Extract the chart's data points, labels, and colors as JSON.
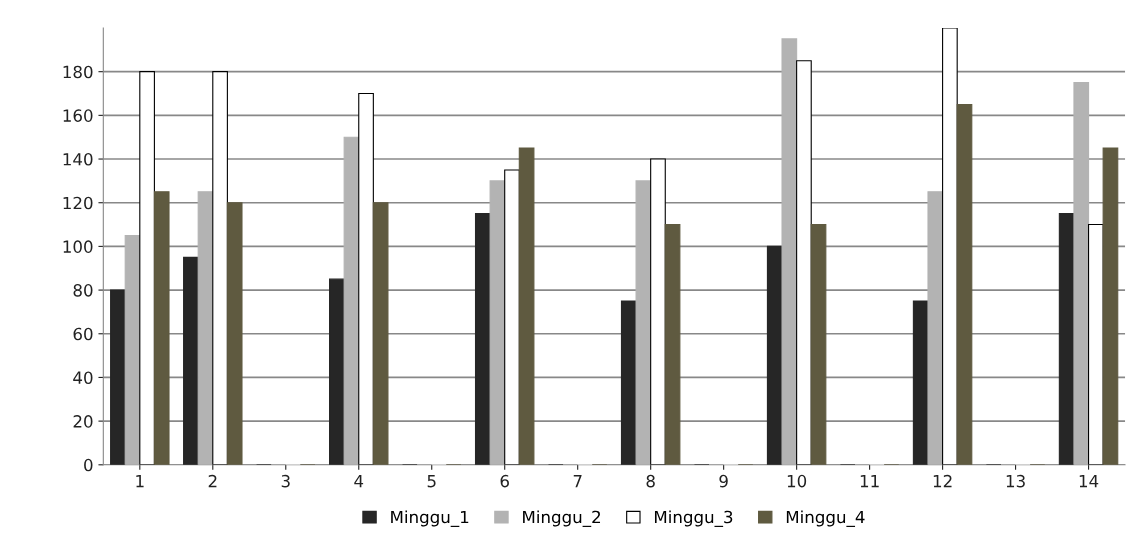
{
  "chart_data": {
    "type": "bar",
    "categories": [
      "1",
      "2",
      "3",
      "4",
      "5",
      "6",
      "7",
      "8",
      "9",
      "10",
      "11",
      "12",
      "13",
      "14"
    ],
    "series": [
      {
        "name": "Minggu_1",
        "color": "#262626",
        "values": [
          80,
          95,
          0,
          85,
          0,
          115,
          0,
          75,
          0,
          100,
          0,
          75,
          0,
          115
        ]
      },
      {
        "name": "Minggu_2",
        "color": "#b3b3b3",
        "values": [
          105,
          125,
          0,
          150,
          0,
          130,
          0,
          130,
          0,
          195,
          0,
          125,
          0,
          175
        ]
      },
      {
        "name": "Minggu_3",
        "color": "#ffffff",
        "values": [
          180,
          180,
          0,
          170,
          0,
          135,
          0,
          140,
          0,
          185,
          0,
          200,
          0,
          110
        ]
      },
      {
        "name": "Minggu_4",
        "color": "#5f5a40",
        "values": [
          125,
          120,
          0,
          120,
          0,
          145,
          0,
          110,
          0,
          110,
          0,
          165,
          0,
          145
        ]
      }
    ],
    "ylim": [
      0,
      200
    ],
    "yticks": [
      0,
      20,
      40,
      60,
      80,
      100,
      120,
      140,
      160,
      180
    ],
    "grid": "y",
    "legend": "bottom"
  }
}
